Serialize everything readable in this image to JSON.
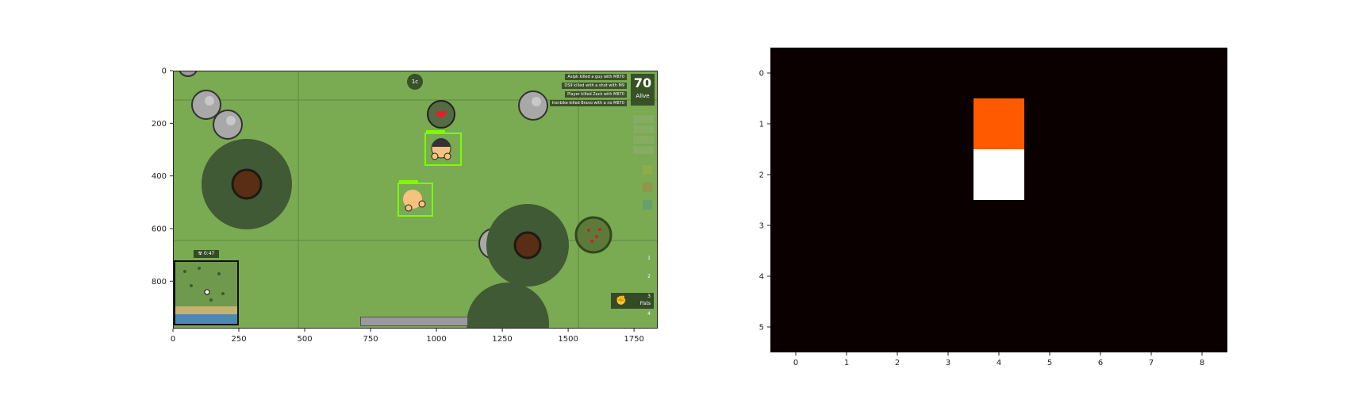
{
  "game": {
    "kill_feed": [
      "Asipk killed a guy with M870",
      "DS9 killed with a shot with M9",
      "Player killed Zack with M870",
      "Ironbike killed Bravo with a no M870"
    ],
    "alive_count": "70",
    "alive_label": "Alive",
    "zone_timer": "☢ 0:47",
    "ping_badge": "1c",
    "weapon_slots": [
      "1",
      "2",
      "3",
      "4"
    ],
    "active_weapon_label": "Fists",
    "x_ticks": [
      "0",
      "250",
      "500",
      "750",
      "1000",
      "1250",
      "1500",
      "1750"
    ],
    "y_ticks": [
      "0",
      "200",
      "400",
      "600",
      "800"
    ],
    "colors": {
      "grass": "#7aaa52",
      "bbox": "#7cfc00",
      "tree": "#3f5a34"
    },
    "icons": [
      "heart-icon",
      "fist-icon",
      "radiation-icon"
    ]
  },
  "chart_data": {
    "type": "heatmap",
    "rows": 6,
    "cols": 9,
    "x_ticks": [
      "0",
      "1",
      "2",
      "3",
      "4",
      "5",
      "6",
      "7",
      "8"
    ],
    "y_ticks": [
      "0",
      "1",
      "2",
      "3",
      "4",
      "5"
    ],
    "cells": [
      {
        "row": 1,
        "col": 4,
        "color": "#ff5a00"
      },
      {
        "row": 2,
        "col": 4,
        "color": "#ffffff"
      }
    ],
    "background_color": "#0a0000",
    "colormap": "hot"
  }
}
